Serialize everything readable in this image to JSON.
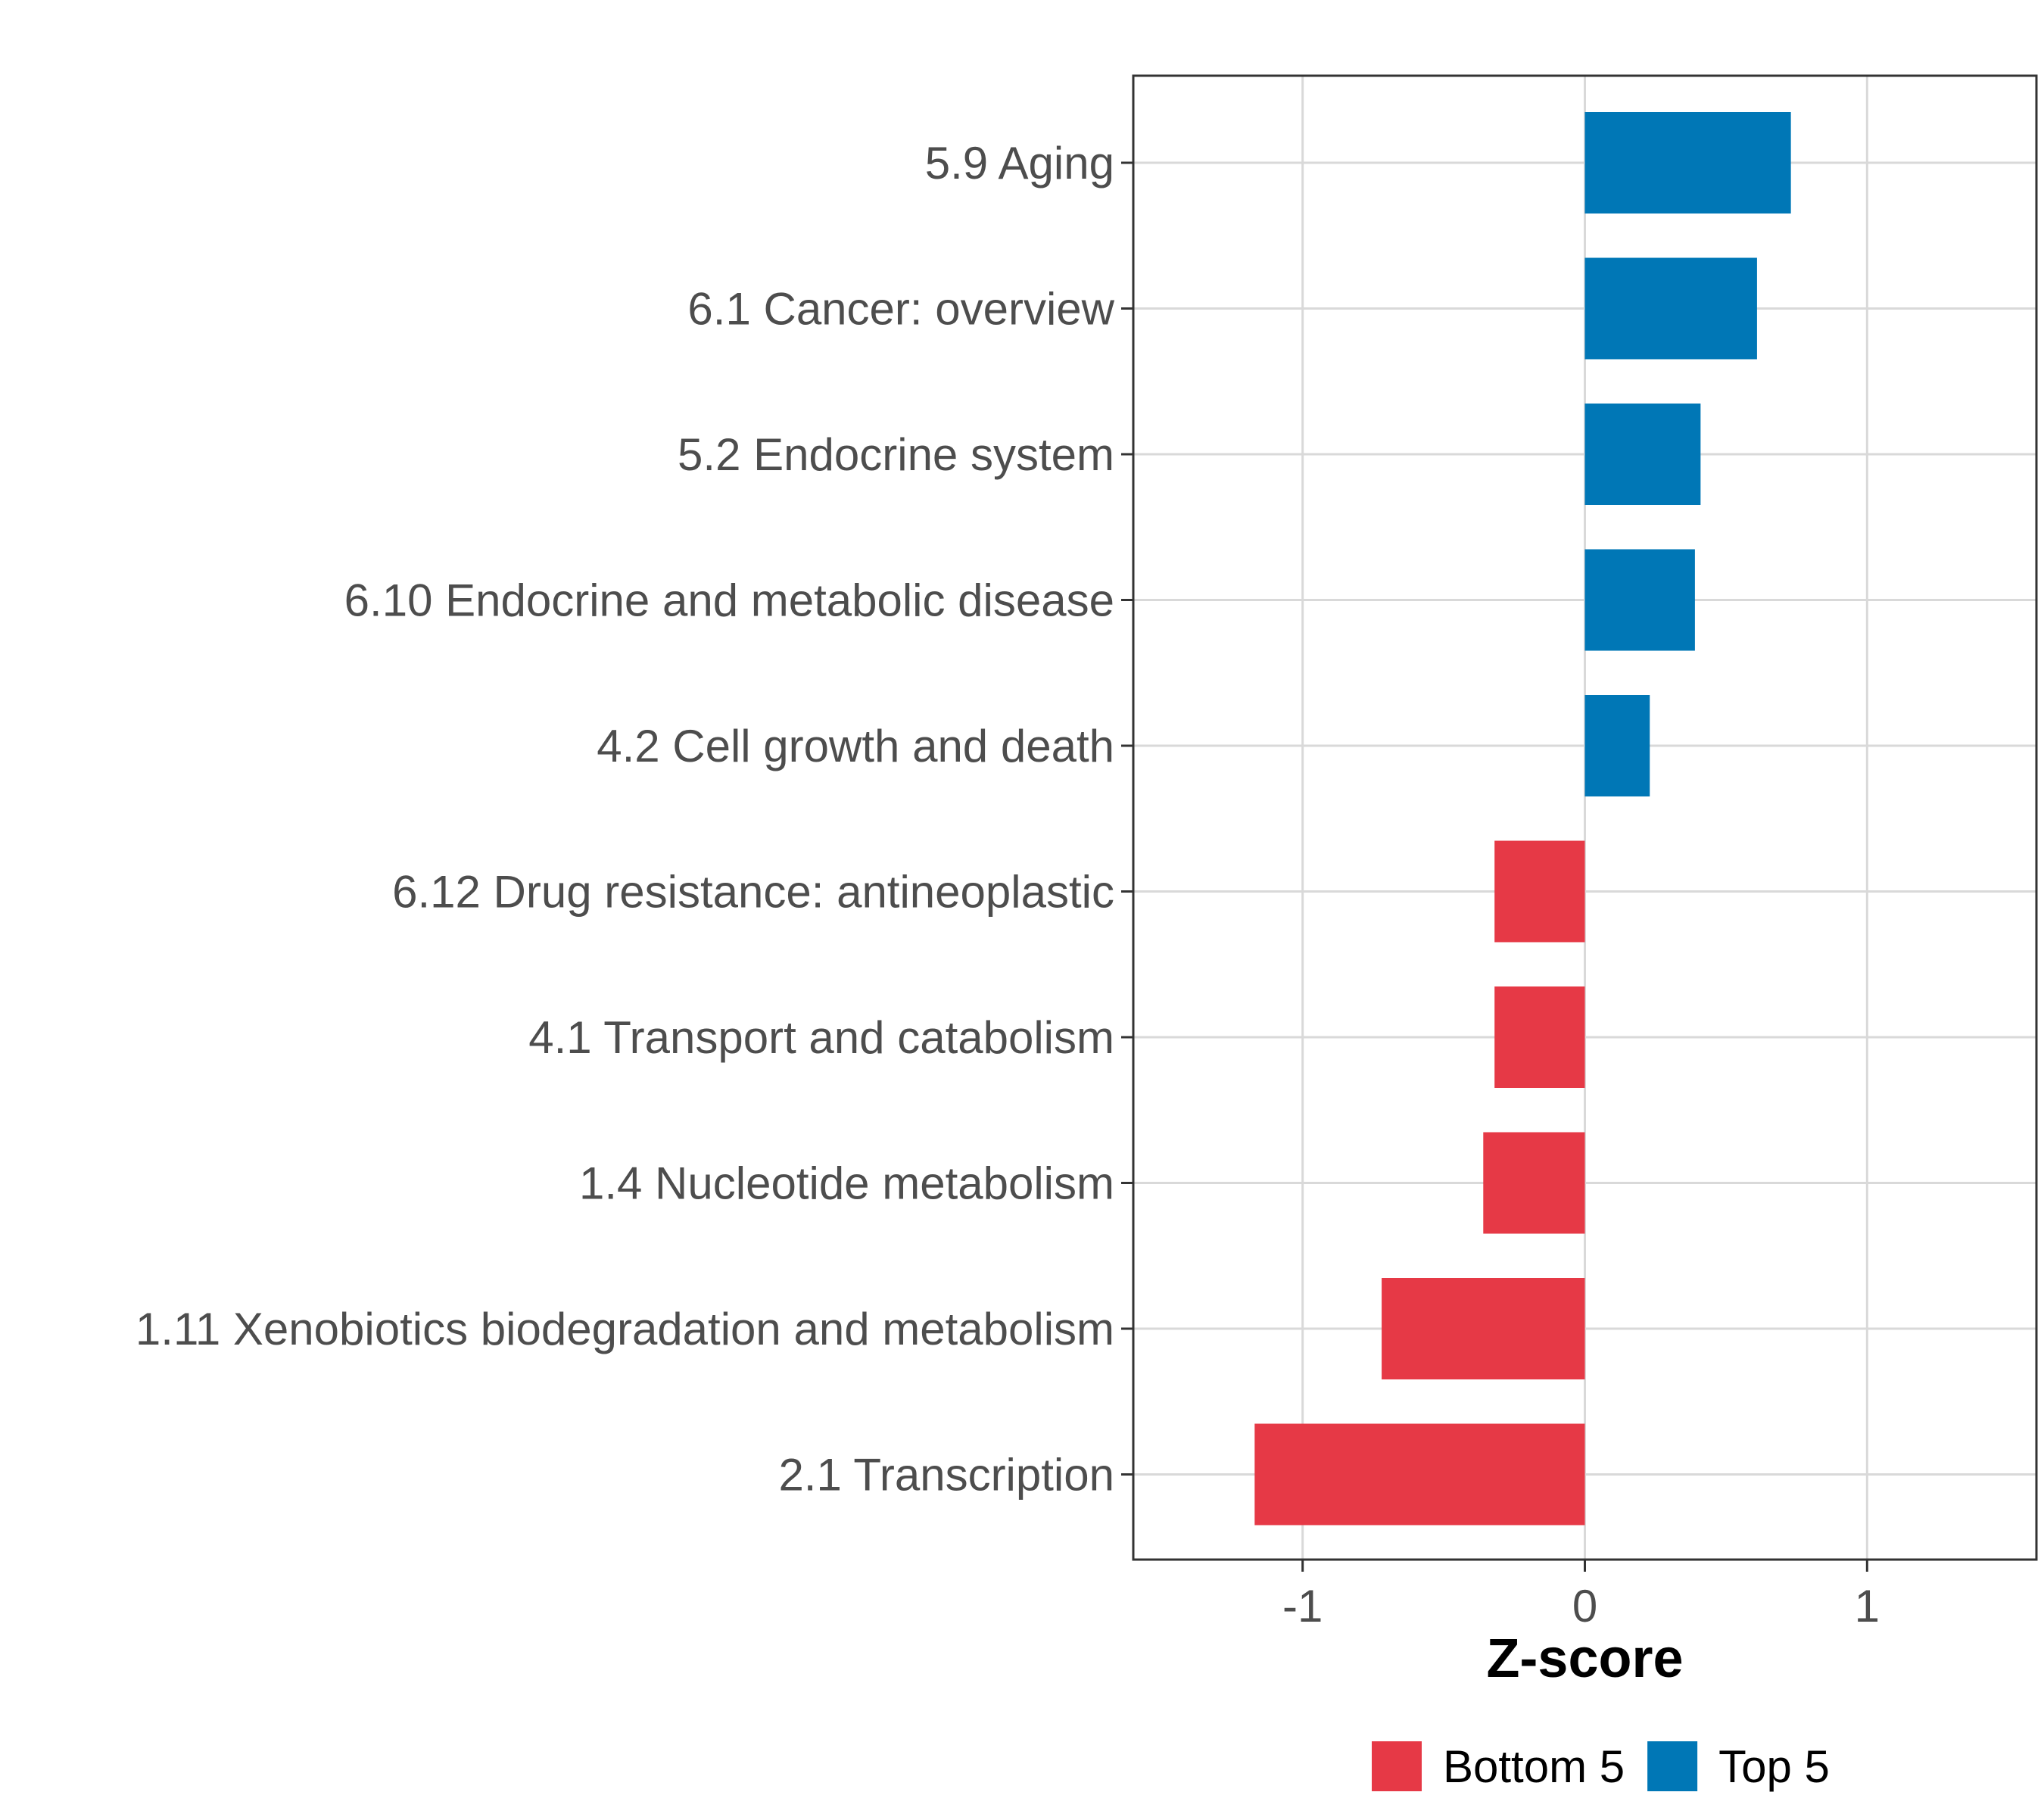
{
  "chart_data": {
    "type": "bar",
    "orientation": "horizontal",
    "categories": [
      "5.9 Aging",
      "6.1 Cancer: overview",
      "5.2 Endocrine system",
      "6.10 Endocrine and metabolic disease",
      "4.2 Cell growth and death",
      "6.12 Drug resistance: antineoplastic",
      "4.1 Transport and catabolism",
      "1.4 Nucleotide metabolism",
      "1.11 Xenobiotics biodegradation and metabolism",
      "2.1 Transcription"
    ],
    "values": [
      0.73,
      0.61,
      0.41,
      0.39,
      0.23,
      -0.32,
      -0.32,
      -0.36,
      -0.72,
      -1.17
    ],
    "groups": [
      "Top 5",
      "Top 5",
      "Top 5",
      "Top 5",
      "Top 5",
      "Bottom 5",
      "Bottom 5",
      "Bottom 5",
      "Bottom 5",
      "Bottom 5"
    ],
    "xlabel": "Z-score",
    "ylabel": "",
    "xlim": [
      -1.6,
      1.6
    ],
    "xticks": [
      -1,
      0,
      1
    ],
    "xtick_labels": [
      "-1",
      "0",
      "1"
    ],
    "grid": true,
    "legend_position": "bottom",
    "legend": [
      {
        "name": "Bottom 5",
        "color": "#E63946"
      },
      {
        "name": "Top 5",
        "color": "#0077B6"
      }
    ]
  }
}
